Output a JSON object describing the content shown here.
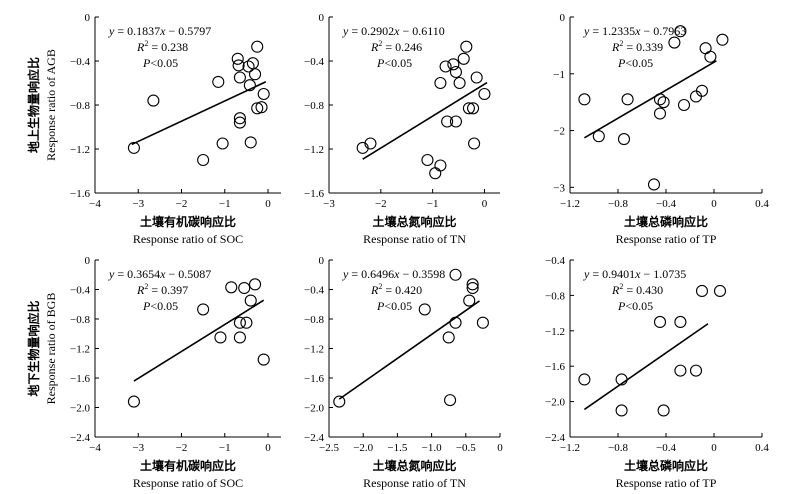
{
  "figure": {
    "row_labels": [
      {
        "zh": "地上生物量响应比",
        "en": "Response ratio of AGB"
      },
      {
        "zh": "地下生物量响应比",
        "en": "Response ratio of BGB"
      }
    ]
  },
  "chart_data": [
    {
      "type": "scatter",
      "xlabel_zh": "土壤有机碳响应比",
      "xlabel": "Response ratio of SOC",
      "ylabel": "",
      "xlim": [
        -4,
        0.3
      ],
      "ylim": [
        -1.6,
        0
      ],
      "xticks": [
        -4,
        -3,
        -2,
        -1,
        0
      ],
      "xtick_labels": [
        "−4",
        "−3",
        "−2",
        "−1",
        "0"
      ],
      "yticks": [
        0,
        -0.4,
        -0.8,
        -1.2,
        -1.6
      ],
      "ytick_labels": [
        "0",
        "−0.4",
        "−0.8",
        "−1.2",
        "−1.6"
      ],
      "equation": "y = 0.1837x − 0.5797",
      "r2": "R² = 0.238",
      "p": "P<0.05",
      "eq_parts": {
        "slope": "0.1837",
        "intercept": "0.5797",
        "r2_value": "0.238",
        "p_value": "<0.05"
      },
      "fit": {
        "slope": 0.1837,
        "intercept": -0.5797,
        "x_range": [
          -3.15,
          -0.05
        ]
      },
      "points": [
        {
          "x": -3.1,
          "y": -1.19
        },
        {
          "x": -2.65,
          "y": -0.76
        },
        {
          "x": -1.15,
          "y": -0.59
        },
        {
          "x": -1.5,
          "y": -1.3
        },
        {
          "x": -1.05,
          "y": -1.15
        },
        {
          "x": -0.7,
          "y": -0.38
        },
        {
          "x": -0.68,
          "y": -0.44
        },
        {
          "x": -0.65,
          "y": -0.55
        },
        {
          "x": -0.65,
          "y": -0.92
        },
        {
          "x": -0.65,
          "y": -0.96
        },
        {
          "x": -0.45,
          "y": -0.45
        },
        {
          "x": -0.42,
          "y": -0.62
        },
        {
          "x": -0.4,
          "y": -1.14
        },
        {
          "x": -0.35,
          "y": -0.42
        },
        {
          "x": -0.3,
          "y": -0.52
        },
        {
          "x": -0.25,
          "y": -0.27
        },
        {
          "x": -0.25,
          "y": -0.83
        },
        {
          "x": -0.15,
          "y": -0.82
        },
        {
          "x": -0.1,
          "y": -0.7
        }
      ]
    },
    {
      "type": "scatter",
      "xlabel_zh": "土壤总氮响应比",
      "xlabel": "Response ratio of TN",
      "ylabel": "",
      "xlim": [
        -3,
        0.3
      ],
      "ylim": [
        -1.6,
        0
      ],
      "xticks": [
        -3,
        -2,
        -1,
        0
      ],
      "xtick_labels": [
        "−3",
        "−2",
        "−1",
        "0"
      ],
      "yticks": [
        0,
        -0.4,
        -0.8,
        -1.2,
        -1.6
      ],
      "ytick_labels": [
        "0",
        "−0.4",
        "−0.8",
        "−1.2",
        "−1.6"
      ],
      "equation": "y = 0.2902x − 0.6110",
      "r2": "R² = 0.246",
      "p": "P<0.05",
      "eq_parts": {
        "slope": "0.2902",
        "intercept": "0.6110",
        "r2_value": "0.246",
        "p_value": "<0.05"
      },
      "fit": {
        "slope": 0.2902,
        "intercept": -0.611,
        "x_range": [
          -2.35,
          0.05
        ]
      },
      "points": [
        {
          "x": -2.35,
          "y": -1.19
        },
        {
          "x": -2.2,
          "y": -1.15
        },
        {
          "x": -1.1,
          "y": -1.3
        },
        {
          "x": -0.95,
          "y": -1.42
        },
        {
          "x": -0.85,
          "y": -1.35
        },
        {
          "x": -0.85,
          "y": -0.6
        },
        {
          "x": -0.75,
          "y": -0.45
        },
        {
          "x": -0.72,
          "y": -0.95
        },
        {
          "x": -0.6,
          "y": -0.43
        },
        {
          "x": -0.55,
          "y": -0.5
        },
        {
          "x": -0.55,
          "y": -0.95
        },
        {
          "x": -0.48,
          "y": -0.6
        },
        {
          "x": -0.4,
          "y": -0.38
        },
        {
          "x": -0.35,
          "y": -0.27
        },
        {
          "x": -0.3,
          "y": -0.83
        },
        {
          "x": -0.22,
          "y": -0.83
        },
        {
          "x": -0.2,
          "y": -1.15
        },
        {
          "x": -0.15,
          "y": -0.55
        },
        {
          "x": 0.0,
          "y": -0.7
        }
      ]
    },
    {
      "type": "scatter",
      "xlabel_zh": "土壤总磷响应比",
      "xlabel": "Response ratio of TP",
      "ylabel": "",
      "xlim": [
        -1.2,
        0.4
      ],
      "ylim": [
        -3.1,
        0
      ],
      "xticks": [
        -1.2,
        -0.8,
        -0.4,
        0,
        0.4
      ],
      "xtick_labels": [
        "−1.2",
        "−0.8",
        "−0.4",
        "0",
        "0.4"
      ],
      "yticks": [
        0,
        -1,
        -2,
        -3
      ],
      "ytick_labels": [
        "0",
        "−1",
        "−2",
        "−3"
      ],
      "equation": "y = 1.2335x − 0.7963",
      "r2": "R² = 0.339",
      "p": "P<0.05",
      "eq_parts": {
        "slope": "1.2335",
        "intercept": "0.7963",
        "r2_value": "0.339",
        "p_value": "<0.05"
      },
      "fit": {
        "slope": 1.2335,
        "intercept": -0.7963,
        "x_range": [
          -1.08,
          0.02
        ]
      },
      "points": [
        {
          "x": -1.08,
          "y": -1.45
        },
        {
          "x": -0.96,
          "y": -2.1
        },
        {
          "x": -0.75,
          "y": -2.15
        },
        {
          "x": -0.72,
          "y": -1.45
        },
        {
          "x": -0.5,
          "y": -2.95
        },
        {
          "x": -0.45,
          "y": -1.45
        },
        {
          "x": -0.45,
          "y": -1.7
        },
        {
          "x": -0.42,
          "y": -1.5
        },
        {
          "x": -0.33,
          "y": -0.45
        },
        {
          "x": -0.28,
          "y": -0.25
        },
        {
          "x": -0.25,
          "y": -1.55
        },
        {
          "x": -0.15,
          "y": -1.4
        },
        {
          "x": -0.1,
          "y": -1.3
        },
        {
          "x": -0.07,
          "y": -0.55
        },
        {
          "x": -0.03,
          "y": -0.7
        },
        {
          "x": 0.07,
          "y": -0.4
        }
      ]
    },
    {
      "type": "scatter",
      "xlabel_zh": "土壤有机碳响应比",
      "xlabel": "Response ratio of SOC",
      "ylabel": "",
      "xlim": [
        -4,
        0.3
      ],
      "ylim": [
        -2.4,
        0
      ],
      "xticks": [
        -4,
        -3,
        -2,
        -1,
        0
      ],
      "xtick_labels": [
        "−4",
        "−3",
        "−2",
        "−1",
        "0"
      ],
      "yticks": [
        0,
        -0.4,
        -0.8,
        -1.2,
        -1.6,
        -2.0,
        -2.4
      ],
      "ytick_labels": [
        "0",
        "−0.4",
        "−0.8",
        "−1.2",
        "−1.6",
        "−2.0",
        "−2.4"
      ],
      "equation": "y = 0.3654x −0.5087",
      "r2": "R² = 0.397",
      "p": "P<0.05",
      "eq_parts": {
        "slope": "0.3654",
        "intercept": "0.5087",
        "r2_value": "0.397",
        "p_value": "<0.05"
      },
      "fit": {
        "slope": 0.3654,
        "intercept": -0.5087,
        "x_range": [
          -3.1,
          -0.1
        ]
      },
      "points": [
        {
          "x": -3.1,
          "y": -1.92
        },
        {
          "x": -1.5,
          "y": -0.67
        },
        {
          "x": -1.1,
          "y": -1.05
        },
        {
          "x": -0.85,
          "y": -0.37
        },
        {
          "x": -0.65,
          "y": -0.85
        },
        {
          "x": -0.65,
          "y": -1.05
        },
        {
          "x": -0.55,
          "y": -0.38
        },
        {
          "x": -0.5,
          "y": -0.85
        },
        {
          "x": -0.4,
          "y": -0.55
        },
        {
          "x": -0.3,
          "y": -0.33
        },
        {
          "x": -0.1,
          "y": -1.35
        }
      ]
    },
    {
      "type": "scatter",
      "xlabel_zh": "土壤总氮响应比",
      "xlabel": "Response ratio of TN",
      "ylabel": "",
      "xlim": [
        -2.5,
        0
      ],
      "ylim": [
        -2.4,
        0
      ],
      "xticks": [
        -2.5,
        -2.0,
        -1.5,
        -1.0,
        -0.5,
        0
      ],
      "xtick_labels": [
        "−2.5",
        "−2.0",
        "−1.5",
        "−1.0",
        "−0.5",
        "0"
      ],
      "yticks": [
        0,
        -0.4,
        -0.8,
        -1.2,
        -1.6,
        -2.0,
        -2.4
      ],
      "ytick_labels": [
        "0",
        "−0.4",
        "−0.8",
        "−1.2",
        "−1.6",
        "−2.0",
        "−2.4"
      ],
      "equation": "y = 0.6496x − 0.3598",
      "r2": "R² = 0.420",
      "p": "P<0.05",
      "eq_parts": {
        "slope": "0.6496",
        "intercept": "0.3598",
        "r2_value": "0.420",
        "p_value": "<0.05"
      },
      "fit": {
        "slope": 0.6496,
        "intercept": -0.3598,
        "x_range": [
          -2.35,
          -0.3
        ]
      },
      "points": [
        {
          "x": -2.35,
          "y": -1.92
        },
        {
          "x": -1.1,
          "y": -0.67
        },
        {
          "x": -0.75,
          "y": -1.05
        },
        {
          "x": -0.73,
          "y": -1.9
        },
        {
          "x": -0.65,
          "y": -0.2
        },
        {
          "x": -0.65,
          "y": -0.85
        },
        {
          "x": -0.45,
          "y": -0.55
        },
        {
          "x": -0.4,
          "y": -0.33
        },
        {
          "x": -0.4,
          "y": -0.38
        },
        {
          "x": -0.25,
          "y": -0.85
        }
      ]
    },
    {
      "type": "scatter",
      "xlabel_zh": "土壤总磷响应比",
      "xlabel": "Response ratio of TP",
      "ylabel": "",
      "xlim": [
        -1.2,
        0.4
      ],
      "ylim": [
        -2.4,
        -0.4
      ],
      "xticks": [
        -1.2,
        -0.8,
        -0.4,
        0,
        0.4
      ],
      "xtick_labels": [
        "−1.2",
        "−0.8",
        "−0.4",
        "0",
        "0.4"
      ],
      "yticks": [
        -0.4,
        -0.8,
        -1.2,
        -1.6,
        -2.0,
        -2.4
      ],
      "ytick_labels": [
        "−0.4",
        "−0.8",
        "−1.2",
        "−1.6",
        "−2.0",
        "−2.4"
      ],
      "equation": "y = 0.9401x − 1.0735",
      "r2": "R² = 0.430",
      "p": "P<0.05",
      "eq_parts": {
        "slope": "0.9401",
        "intercept": "1.0735",
        "r2_value": "0.430",
        "p_value": "<0.05"
      },
      "fit": {
        "slope": 0.9401,
        "intercept": -1.0735,
        "x_range": [
          -1.08,
          -0.05
        ]
      },
      "points": [
        {
          "x": -1.08,
          "y": -1.75
        },
        {
          "x": -0.77,
          "y": -1.75
        },
        {
          "x": -0.77,
          "y": -2.1
        },
        {
          "x": -0.45,
          "y": -1.1
        },
        {
          "x": -0.42,
          "y": -2.1
        },
        {
          "x": -0.28,
          "y": -1.1
        },
        {
          "x": -0.28,
          "y": -1.65
        },
        {
          "x": -0.15,
          "y": -1.65
        },
        {
          "x": -0.1,
          "y": -0.75
        },
        {
          "x": 0.05,
          "y": -0.75
        }
      ]
    }
  ]
}
